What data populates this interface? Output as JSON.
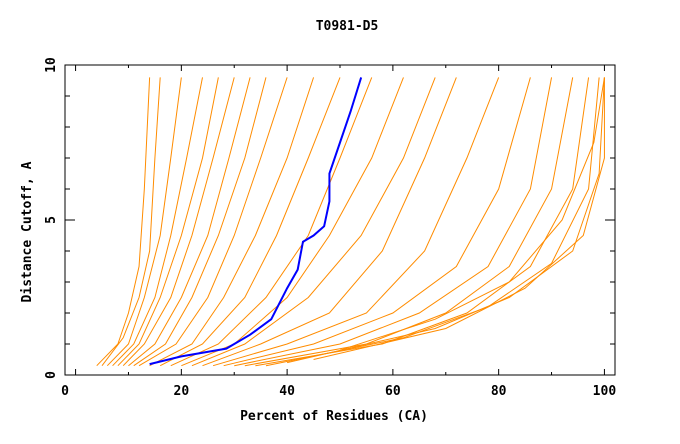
{
  "chart_data": {
    "type": "line",
    "title": "T0981-D5",
    "xlabel": "Percent of Residues (CA)",
    "ylabel": "Distance Cutoff, A",
    "xlim": [
      -2,
      102
    ],
    "ylim": [
      0,
      10
    ],
    "xticks": [
      0,
      20,
      40,
      60,
      80,
      100
    ],
    "yticks": [
      0,
      5,
      10
    ],
    "grid": false,
    "colors": {
      "highlight": "#0000ff",
      "others": "#ff8c00"
    },
    "highlight_series": {
      "x": [
        14,
        20,
        28.5,
        33,
        37,
        40,
        42,
        43,
        45,
        47,
        48,
        48,
        50,
        52,
        54
      ],
      "y": [
        0.35,
        0.6,
        0.85,
        1.3,
        1.8,
        2.8,
        3.4,
        4.3,
        4.5,
        4.8,
        5.6,
        6.5,
        7.5,
        8.5,
        9.6
      ]
    },
    "series": [
      {
        "x": [
          4,
          8,
          10,
          12,
          13,
          14
        ],
        "y": [
          0.3,
          1,
          2,
          3.5,
          6,
          9.6
        ]
      },
      {
        "x": [
          5,
          9,
          12,
          14,
          15,
          16
        ],
        "y": [
          0.3,
          1.2,
          2.5,
          4,
          7,
          9.6
        ]
      },
      {
        "x": [
          6,
          10,
          13,
          16,
          18,
          20
        ],
        "y": [
          0.3,
          1,
          2.5,
          4.5,
          7,
          9.6
        ]
      },
      {
        "x": [
          7,
          11,
          15,
          18,
          21,
          24
        ],
        "y": [
          0.3,
          1,
          2.5,
          4.5,
          7,
          9.6
        ]
      },
      {
        "x": [
          8,
          12,
          16,
          20,
          24,
          27
        ],
        "y": [
          0.3,
          1,
          2.5,
          4.5,
          7,
          9.6
        ]
      },
      {
        "x": [
          9,
          13,
          18,
          22,
          26,
          30
        ],
        "y": [
          0.3,
          1,
          2.5,
          4.5,
          7,
          9.6
        ]
      },
      {
        "x": [
          10,
          15,
          20,
          25,
          29,
          33
        ],
        "y": [
          0.3,
          1,
          2.5,
          4.5,
          7,
          9.6
        ]
      },
      {
        "x": [
          11,
          17,
          22,
          27,
          32,
          36
        ],
        "y": [
          0.3,
          1,
          2.5,
          4.5,
          7,
          9.6
        ]
      },
      {
        "x": [
          12,
          19,
          25,
          30,
          35,
          40
        ],
        "y": [
          0.3,
          1,
          2.5,
          4.5,
          7,
          9.6
        ]
      },
      {
        "x": [
          14,
          22,
          28,
          34,
          40,
          45
        ],
        "y": [
          0.3,
          1,
          2.5,
          4.5,
          7,
          9.6
        ]
      },
      {
        "x": [
          16,
          24,
          32,
          38,
          44,
          50
        ],
        "y": [
          0.3,
          1,
          2.5,
          4.5,
          7,
          9.6
        ]
      },
      {
        "x": [
          18,
          27,
          36,
          44,
          50,
          56
        ],
        "y": [
          0.3,
          1,
          2.5,
          4.5,
          7,
          9.6
        ]
      },
      {
        "x": [
          20,
          30,
          40,
          48,
          56,
          62
        ],
        "y": [
          0.3,
          1,
          2.5,
          4.5,
          7,
          9.6
        ]
      },
      {
        "x": [
          22,
          32,
          44,
          54,
          62,
          68
        ],
        "y": [
          0.3,
          1,
          2.5,
          4.5,
          7,
          9.6
        ]
      },
      {
        "x": [
          24,
          35,
          48,
          58,
          66,
          72
        ],
        "y": [
          0.3,
          1,
          2,
          4,
          7,
          9.6
        ]
      },
      {
        "x": [
          26,
          40,
          55,
          66,
          74,
          80
        ],
        "y": [
          0.3,
          1,
          2,
          4,
          7,
          9.6
        ]
      },
      {
        "x": [
          28,
          45,
          60,
          72,
          80,
          86
        ],
        "y": [
          0.3,
          1,
          2,
          3.5,
          6,
          9.6
        ]
      },
      {
        "x": [
          30,
          50,
          65,
          78,
          86,
          90
        ],
        "y": [
          0.3,
          1,
          2,
          3.5,
          6,
          9.6
        ]
      },
      {
        "x": [
          32,
          55,
          70,
          82,
          90,
          94
        ],
        "y": [
          0.3,
          1,
          2,
          3.5,
          6,
          9.6
        ]
      },
      {
        "x": [
          34,
          58,
          74,
          86,
          94,
          97
        ],
        "y": [
          0.3,
          1,
          2,
          3.5,
          6,
          9.6
        ]
      },
      {
        "x": [
          36,
          62,
          78,
          90,
          97,
          99
        ],
        "y": [
          0.3,
          1.2,
          2.2,
          3.6,
          6,
          9.6
        ]
      },
      {
        "x": [
          40,
          68,
          82,
          94,
          99,
          100
        ],
        "y": [
          0.4,
          1.5,
          2.5,
          4,
          6.5,
          9.6
        ]
      },
      {
        "x": [
          45,
          70,
          85,
          96,
          100,
          100
        ],
        "y": [
          0.5,
          1.5,
          2.8,
          4.5,
          7,
          9.6
        ]
      },
      {
        "x": [
          50,
          68,
          82,
          92,
          98,
          100
        ],
        "y": [
          0.8,
          1.8,
          3,
          5,
          7.5,
          9.6
        ]
      }
    ]
  }
}
